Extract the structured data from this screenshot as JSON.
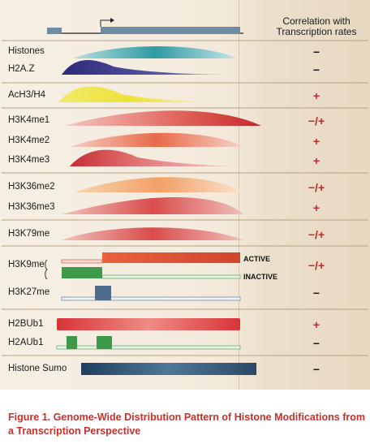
{
  "header": {
    "correlation_label": "Correlation with\nTranscription rates"
  },
  "rows": [
    {
      "label": "Histones",
      "correlation": "−"
    },
    {
      "label": "H2A.Z",
      "correlation": "−"
    },
    {
      "label": "AcH3/H4",
      "correlation": "+"
    },
    {
      "label": "H3K4me1",
      "correlation": "−/+"
    },
    {
      "label": "H3K4me2",
      "correlation": "+"
    },
    {
      "label": "H3K4me3",
      "correlation": "+"
    },
    {
      "label": "H3K36me2",
      "correlation": "−/+"
    },
    {
      "label": "H3K36me3",
      "correlation": "+"
    },
    {
      "label": "H3K79me",
      "correlation": "−/+"
    },
    {
      "label": "H3K9me",
      "correlation": "−/+"
    },
    {
      "label": "H3K27me",
      "correlation": "−"
    },
    {
      "label": "H2BUb1",
      "correlation": "+"
    },
    {
      "label": "H2AUb1",
      "correlation": "−"
    },
    {
      "label": "Histone Sumo",
      "correlation": "−"
    }
  ],
  "states": {
    "active": "ACTIVE",
    "inactive": "INACTIVE"
  },
  "colors": {
    "positive": "#c0282c",
    "negative": "#1a1a1a",
    "caption": "#c9302a"
  },
  "caption": "Figure 1. Genome-Wide Distribution Pattern of Histone Modifications from a Transcription Perspective"
}
